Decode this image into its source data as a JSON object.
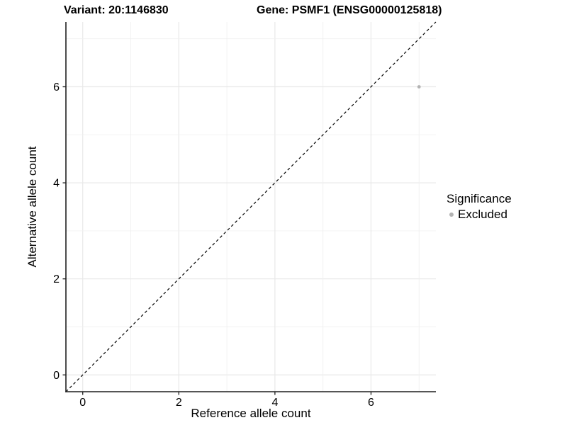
{
  "titles": {
    "variant": "Variant: 20:1146830",
    "gene": "Gene: PSMF1 (ENSG00000125818)"
  },
  "chart_data": {
    "type": "scatter",
    "xlabel": "Reference allele count",
    "ylabel": "Alternative allele count",
    "xlim": [
      -0.35,
      7.35
    ],
    "ylim": [
      -0.35,
      7.35
    ],
    "x_ticks": [
      0,
      2,
      4,
      6
    ],
    "y_ticks": [
      0,
      2,
      4,
      6
    ],
    "grid_positions": [
      0,
      1,
      2,
      3,
      4,
      5,
      6,
      7
    ],
    "grid_on": true,
    "points": [
      {
        "x": 7,
        "y": 6,
        "series": "Excluded"
      }
    ],
    "identity_line": {
      "slope": 1,
      "intercept": 0,
      "style": "dashed"
    },
    "legend": {
      "title": "Significance",
      "position": "right",
      "entries": [
        {
          "label": "Excluded",
          "color": "#b3b3b3"
        }
      ]
    },
    "colors": {
      "point": "#b3b3b3",
      "grid_major": "#e8e8e8",
      "grid_minor": "#f0f0f0",
      "axis": "#1f1f1f",
      "dashed_line": "#000000",
      "text": "#000000"
    }
  }
}
